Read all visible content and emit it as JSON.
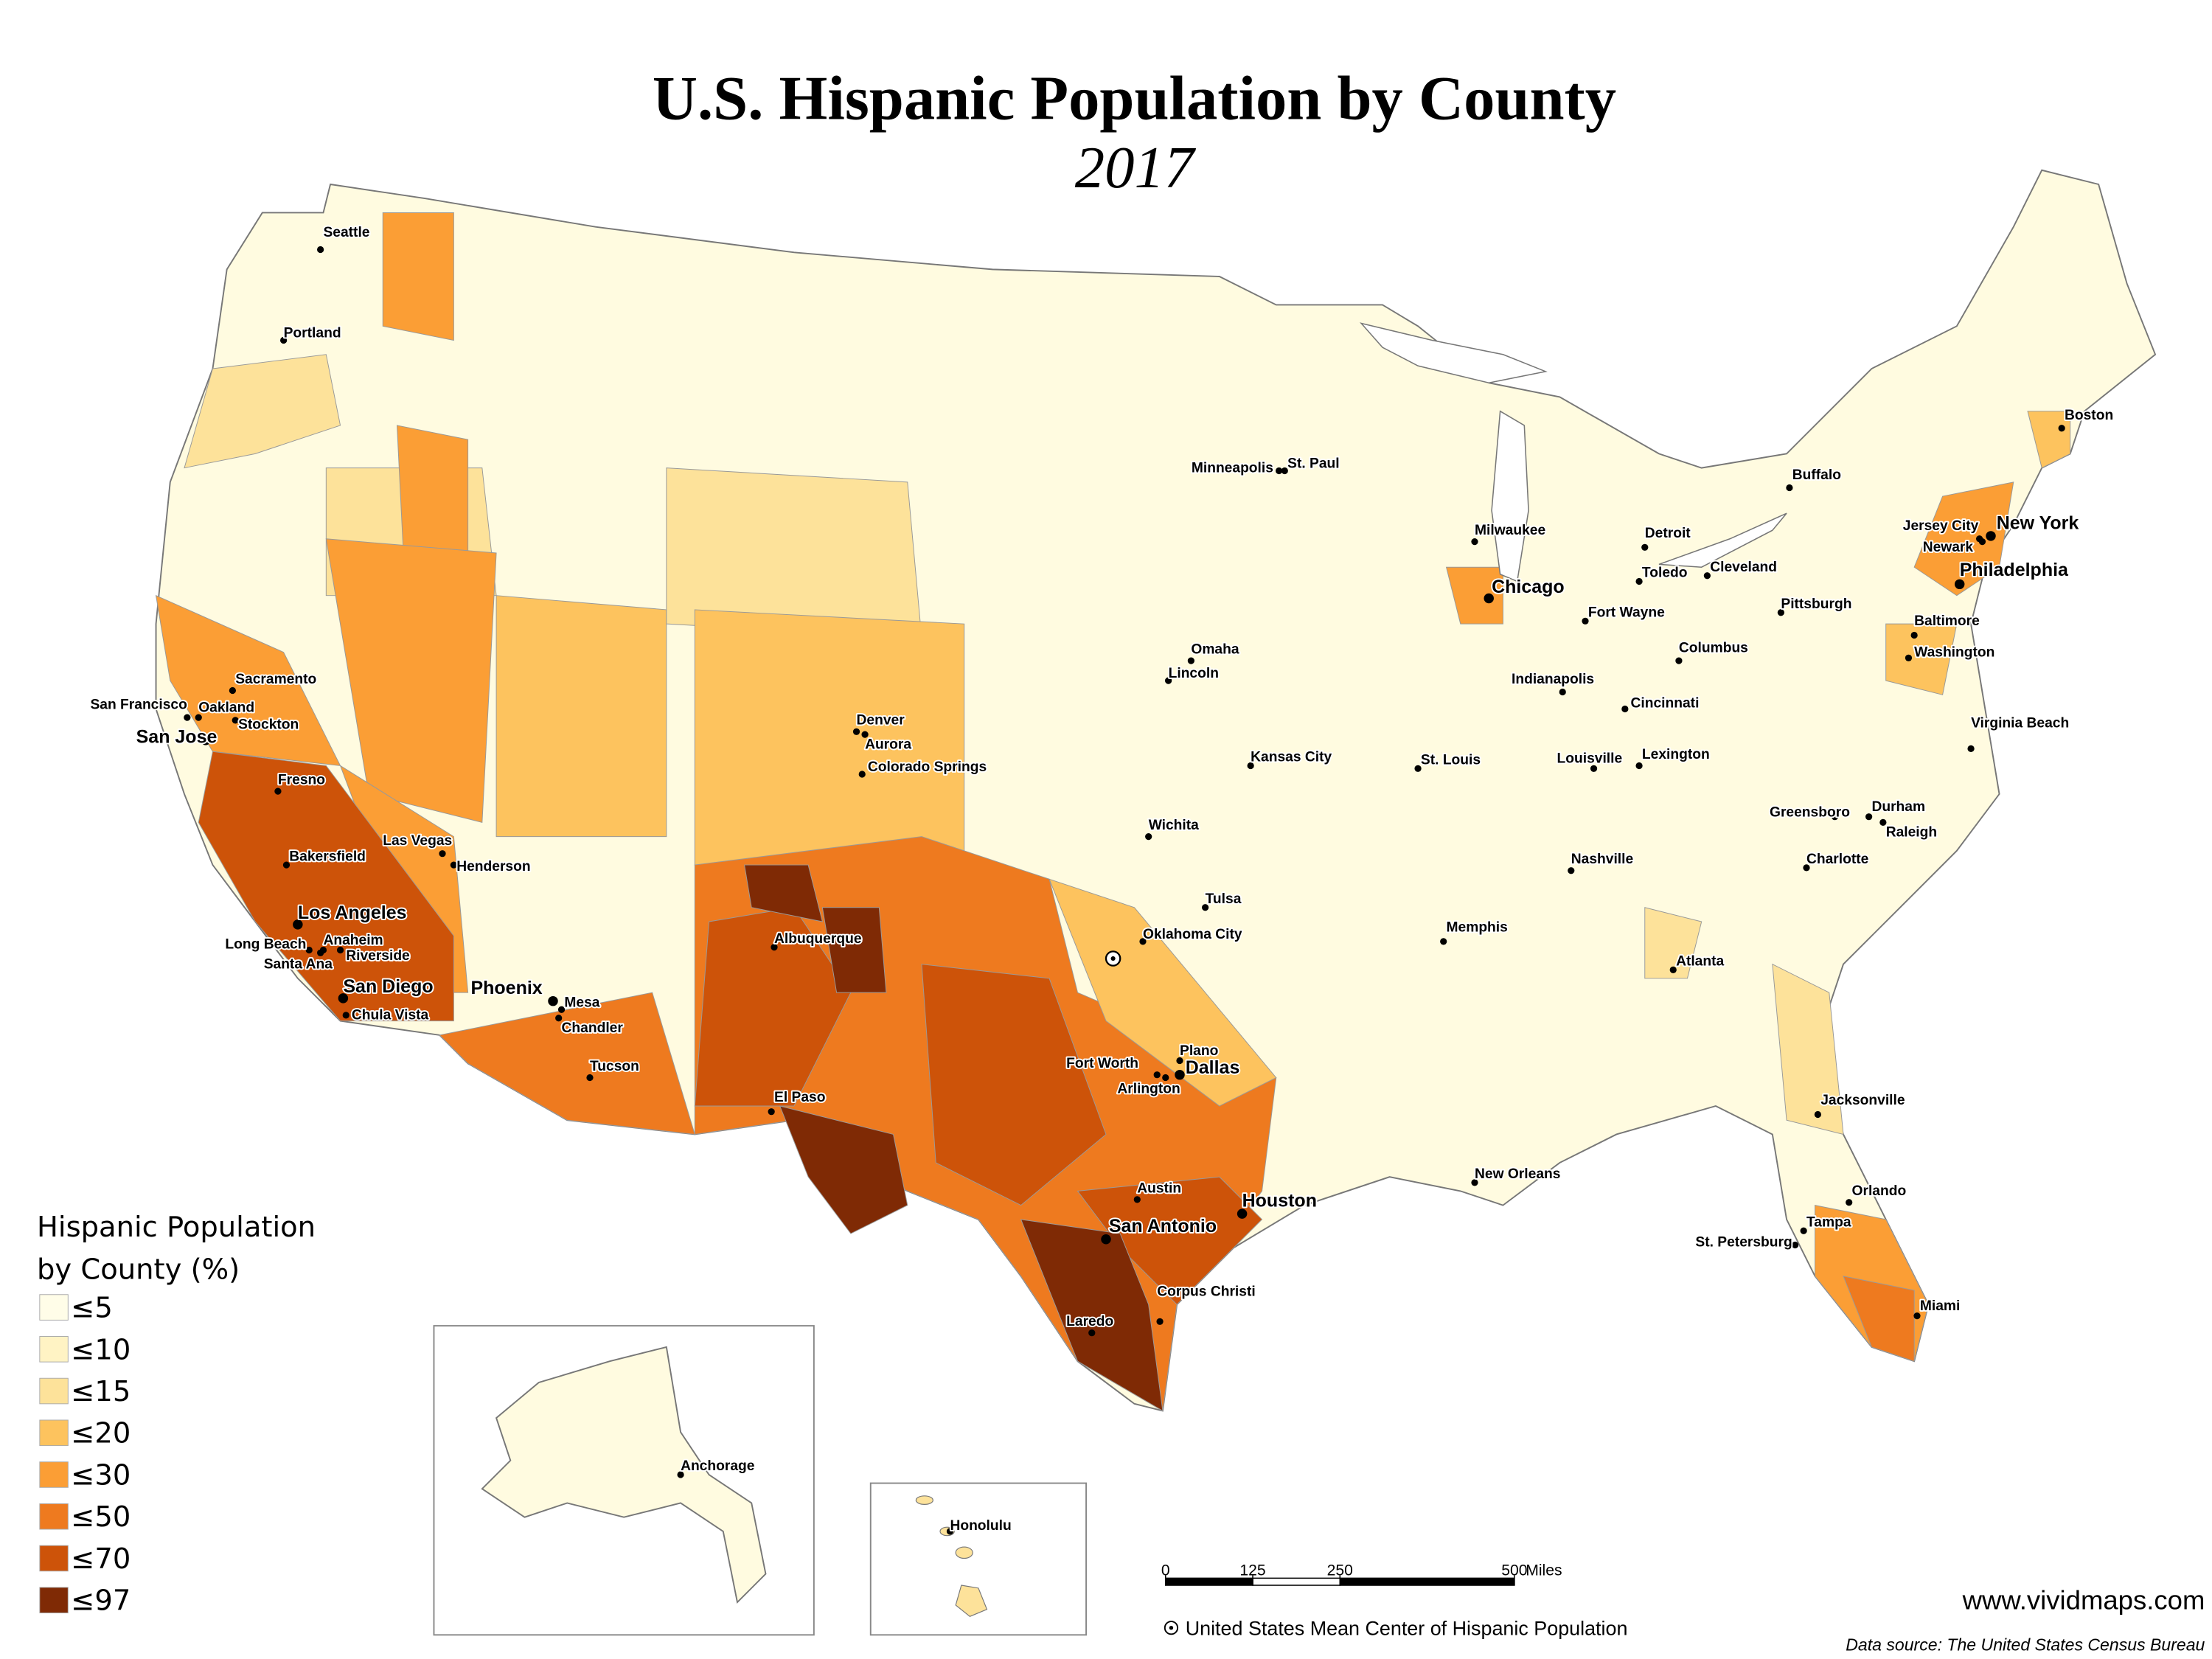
{
  "header": {
    "title": "U.S. Hispanic Population by County",
    "subtitle": "2017"
  },
  "legend": {
    "title": [
      "Hispanic Population",
      "by County (%)"
    ],
    "items": [
      {
        "label": "≤5",
        "color": "#fffde8"
      },
      {
        "label": "≤10",
        "color": "#fff3c4"
      },
      {
        "label": "≤15",
        "color": "#fde29a"
      },
      {
        "label": "≤20",
        "color": "#fdc35e"
      },
      {
        "label": "≤30",
        "color": "#fb9e35"
      },
      {
        "label": "≤50",
        "color": "#ee7a1f"
      },
      {
        "label": "≤70",
        "color": "#cd5309"
      },
      {
        "label": "≤97",
        "color": "#7f2a05"
      }
    ]
  },
  "cities": [
    "Seattle",
    "Portland",
    "Sacramento",
    "San Francisco",
    "Oakland",
    "Stockton",
    "San Jose",
    "Fresno",
    "Bakersfield",
    "Las Vegas",
    "Henderson",
    "Los Angeles",
    "Long Beach",
    "Anaheim",
    "Riverside",
    "Santa Ana",
    "San Diego",
    "Chula Vista",
    "Phoenix",
    "Mesa",
    "Chandler",
    "Tucson",
    "Albuquerque",
    "El Paso",
    "Denver",
    "Aurora",
    "Colorado Springs",
    "Omaha",
    "Lincoln",
    "Kansas City",
    "Wichita",
    "Tulsa",
    "Oklahoma City",
    "Fort Worth",
    "Plano",
    "Dallas",
    "Arlington",
    "Austin",
    "San Antonio",
    "Houston",
    "Corpus Christi",
    "Laredo",
    "Minneapolis",
    "St. Paul",
    "Milwaukee",
    "Chicago",
    "Detroit",
    "Toledo",
    "Cleveland",
    "Fort Wayne",
    "Indianapolis",
    "Columbus",
    "Cincinnati",
    "St. Louis",
    "Louisville",
    "Lexington",
    "Nashville",
    "Memphis",
    "Atlanta",
    "New Orleans",
    "Jacksonville",
    "Orlando",
    "Tampa",
    "St. Petersburg",
    "Miami",
    "Charlotte",
    "Greensboro",
    "Durham",
    "Raleigh",
    "Virginia Beach",
    "Washington",
    "Baltimore",
    "Philadelphia",
    "Pittsburgh",
    "Buffalo",
    "New York",
    "Jersey City",
    "Newark",
    "Boston",
    "Anchorage",
    "Honolulu"
  ],
  "scale_bar": {
    "ticks": [
      0,
      125,
      250,
      500
    ],
    "unit": "Miles"
  },
  "mean_center_note": "United States Mean Center of Hispanic Population",
  "website": "www.vividmaps.com",
  "data_source": "Data source: The United States Census Bureau"
}
